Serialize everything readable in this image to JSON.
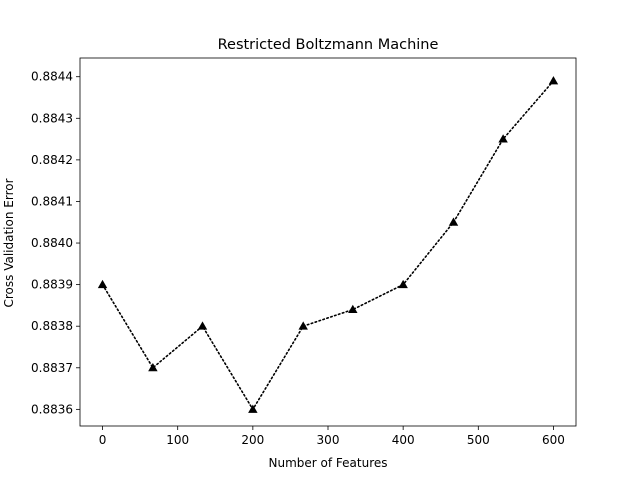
{
  "chart_data": {
    "type": "line",
    "title": "Restricted Boltzmann Machine",
    "xlabel": "Number of Features",
    "ylabel": "Cross Validation Error",
    "xlim": [
      -30,
      630
    ],
    "ylim": [
      0.88356,
      0.884445
    ],
    "x_ticks": [
      0,
      100,
      200,
      300,
      400,
      500,
      600
    ],
    "x_tick_labels": [
      "0",
      "100",
      "200",
      "300",
      "400",
      "500",
      "600"
    ],
    "y_ticks": [
      0.8836,
      0.8837,
      0.8838,
      0.8839,
      0.884,
      0.8841,
      0.8842,
      0.8843,
      0.8844
    ],
    "y_tick_labels": [
      "0.8836",
      "0.8837",
      "0.8838",
      "0.8839",
      "0.8840",
      "0.8841",
      "0.8842",
      "0.8843",
      "0.8844"
    ],
    "grid": false,
    "series": [
      {
        "line_style": "dotted",
        "marker": "triangle-up",
        "color": "#000000",
        "x": [
          0,
          67,
          133,
          200,
          267,
          333,
          400,
          467,
          533,
          600
        ],
        "y": [
          0.8839,
          0.8837,
          0.8838,
          0.8836,
          0.8838,
          0.88384,
          0.8839,
          0.88405,
          0.88425,
          0.88439
        ]
      }
    ]
  }
}
